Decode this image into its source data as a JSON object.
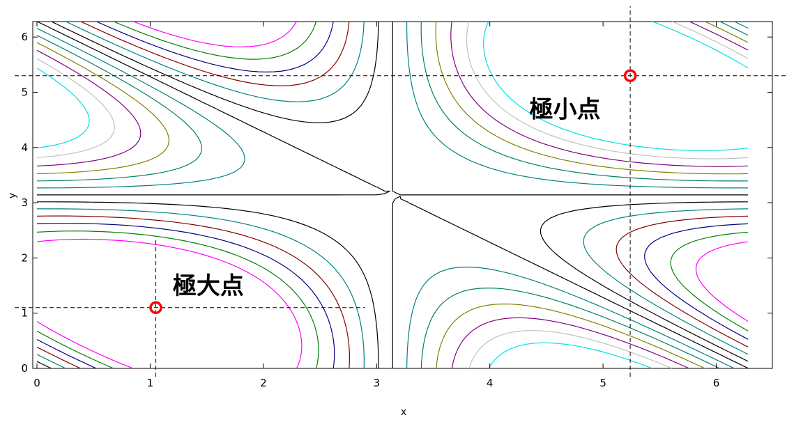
{
  "chart_data": {
    "type": "line",
    "subtype": "contour",
    "title": "",
    "xlabel": "x",
    "ylabel": "y",
    "xlim": [
      0,
      6.28
    ],
    "ylim": [
      0,
      6.28
    ],
    "x_ticks": [
      0,
      1,
      2,
      3,
      4,
      5,
      6
    ],
    "y_ticks": [
      0,
      1,
      2,
      3,
      4,
      5,
      6
    ],
    "grid": false,
    "legend": "none",
    "annotations": [
      {
        "text": "極大点",
        "x": 1.05,
        "y": 1.1,
        "label_x": 1.2,
        "label_y": 1.5
      },
      {
        "text": "極小点",
        "x": 5.24,
        "y": 5.3,
        "label_x": 4.35,
        "label_y": 4.7
      }
    ],
    "function_levels": [
      -1.5,
      -1.25,
      -1.0,
      -0.75,
      -0.5,
      -0.25,
      0.0,
      0.25,
      0.5,
      0.75,
      1.0,
      1.25,
      1.5
    ],
    "level_colors": [
      "#00e0e0",
      "#c0c0c0",
      "#800080",
      "#808000",
      "#008060",
      "#008080",
      "#000000",
      "#000000",
      "#008080",
      "#800000",
      "#000080",
      "#008000",
      "#ff00ff"
    ],
    "marker_color": "#ff0000"
  }
}
